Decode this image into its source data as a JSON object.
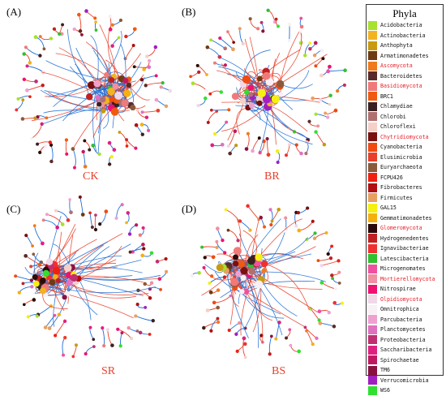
{
  "panels": [
    {
      "letter": "(A)",
      "name": "CK"
    },
    {
      "letter": "(B)",
      "name": "BR"
    },
    {
      "letter": "(C)",
      "name": "SR"
    },
    {
      "letter": "(D)",
      "name": "BS"
    }
  ],
  "legend": {
    "title": "Phyla",
    "items": [
      {
        "label": "Acidobacteria",
        "color": "#a6e22e",
        "highlight": false
      },
      {
        "label": "Actinobacteria",
        "color": "#f2b320",
        "highlight": false
      },
      {
        "label": "Anthophyta",
        "color": "#c99a10",
        "highlight": false
      },
      {
        "label": "Armatimonadetes",
        "color": "#6e3b12",
        "highlight": false
      },
      {
        "label": "Ascomycota",
        "color": "#f07a1c",
        "highlight": true
      },
      {
        "label": "Bacteroidetes",
        "color": "#5a2a2a",
        "highlight": false
      },
      {
        "label": "Basidiomycota",
        "color": "#f07a7a",
        "highlight": true
      },
      {
        "label": "BRC1",
        "color": "#f05a10",
        "highlight": false
      },
      {
        "label": "Chlamydiae",
        "color": "#3a2020",
        "highlight": false
      },
      {
        "label": "Chlorobi",
        "color": "#b07070",
        "highlight": false
      },
      {
        "label": "Chloroflexi",
        "color": "#f5d0c8",
        "highlight": false
      },
      {
        "label": "Chytridiomycota",
        "color": "#7a1010",
        "highlight": true
      },
      {
        "label": "Cyanobacteria",
        "color": "#f04a10",
        "highlight": false
      },
      {
        "label": "Elusimicrobia",
        "color": "#e8402a",
        "highlight": false
      },
      {
        "label": "Euryarchaeota",
        "color": "#8a5a3a",
        "highlight": false
      },
      {
        "label": "FCPU426",
        "color": "#f02010",
        "highlight": false
      },
      {
        "label": "Fibrobacteres",
        "color": "#b01010",
        "highlight": false
      },
      {
        "label": "Firmicutes",
        "color": "#e8a060",
        "highlight": false
      },
      {
        "label": "GAL15",
        "color": "#f5f010",
        "highlight": false
      },
      {
        "label": "Gemmatimonadetes",
        "color": "#f5b010",
        "highlight": false
      },
      {
        "label": "Glomeromycota",
        "color": "#2a0a0a",
        "highlight": true
      },
      {
        "label": "Hydrogenedentes",
        "color": "#c02020",
        "highlight": false
      },
      {
        "label": "Ignavibacteriae",
        "color": "#f03030",
        "highlight": false
      },
      {
        "label": "Latescibacteria",
        "color": "#30c030",
        "highlight": false
      },
      {
        "label": "Microgenomates",
        "color": "#f050a0",
        "highlight": false
      },
      {
        "label": "Mortierellomycota",
        "color": "#f090a0",
        "highlight": true
      },
      {
        "label": "Nitrospirae",
        "color": "#f01070",
        "highlight": false
      },
      {
        "label": "Olpidiomycota",
        "color": "#f0d8e8",
        "highlight": true
      },
      {
        "label": "Omnitrophica",
        "color": "#f8f0f4",
        "highlight": false
      },
      {
        "label": "Parcubacteria",
        "color": "#f0a0d0",
        "highlight": false
      },
      {
        "label": "Planctomycetes",
        "color": "#e070c0",
        "highlight": false
      },
      {
        "label": "Proteobacteria",
        "color": "#c03070",
        "highlight": false
      },
      {
        "label": "Saccharibacteria",
        "color": "#e02080",
        "highlight": false
      },
      {
        "label": "Spirochaetae",
        "color": "#c01860",
        "highlight": false
      },
      {
        "label": "TM6",
        "color": "#8a1040",
        "highlight": false
      },
      {
        "label": "Verrucomicrobia",
        "color": "#a020c0",
        "highlight": false
      },
      {
        "label": "WS6",
        "color": "#30e030",
        "highlight": false
      }
    ]
  },
  "edge_colors": {
    "positive": "#e8402a",
    "negative": "#1f6fd6"
  }
}
